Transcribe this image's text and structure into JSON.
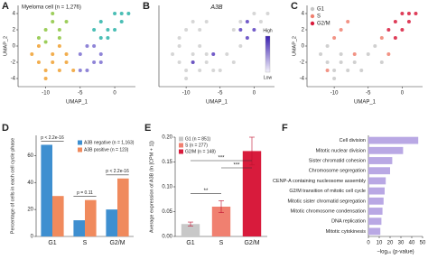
{
  "chart_data": [
    {
      "type": "scatter",
      "label": "A",
      "title": "Myeloma cell (n = 1,276)",
      "xlabel": "UMAP_1",
      "ylabel": "UMAP_2",
      "xlim": [
        -14,
        3
      ],
      "ylim": [
        -5,
        5
      ],
      "xticks": [
        -10,
        -5,
        0
      ],
      "yticks": [
        -4,
        -2,
        0,
        2,
        4
      ],
      "series": [
        {
          "color": "#f0a030",
          "x": [
            -12,
            -11,
            -10,
            -9,
            -8,
            -7,
            -11,
            -9,
            -7,
            -6,
            -10,
            -8
          ],
          "y": [
            -1,
            -2,
            -3,
            -2,
            -3,
            -2,
            0,
            -1,
            -1,
            -3,
            -4,
            0
          ]
        },
        {
          "color": "#8cc63f",
          "x": [
            -11,
            -10,
            -9,
            -8,
            -10,
            -8,
            -7,
            -9
          ],
          "y": [
            1,
            2,
            3,
            2,
            0.5,
            1,
            3,
            4
          ]
        },
        {
          "color": "#2bb3a8",
          "x": [
            -3,
            -2,
            -1,
            0,
            1,
            2,
            -1,
            0,
            1,
            -2
          ],
          "y": [
            2,
            3,
            2,
            4,
            3,
            4,
            1,
            2,
            4,
            1
          ]
        },
        {
          "color": "#7b6fd0",
          "x": [
            -5,
            -4,
            -3,
            -2,
            -4,
            -3,
            -5,
            -2
          ],
          "y": [
            -1,
            0,
            -2,
            -1,
            -3,
            0,
            -3,
            -2
          ]
        }
      ]
    },
    {
      "type": "scatter",
      "label": "B",
      "title": "A3B",
      "xlabel": "UMAP_1",
      "high": "High",
      "low": "Low",
      "xlim": [
        -14,
        3
      ],
      "ylim": [
        -5,
        5
      ],
      "xticks": [
        -10,
        -5,
        0
      ],
      "series": [
        {
          "color": "#cfcfcf",
          "x": [
            -12,
            -11,
            -10,
            -9,
            -8,
            -7,
            -11,
            -9,
            -7,
            -6,
            -10,
            -8,
            -11,
            -10,
            -9,
            -8,
            -7,
            -3,
            -2,
            0,
            1,
            2,
            -4,
            -3,
            -2,
            -5
          ],
          "y": [
            -1,
            -2,
            -3,
            -2,
            -3,
            -2,
            0,
            -1,
            -1,
            -3,
            -4,
            0,
            1,
            2,
            3,
            2,
            3,
            2,
            3,
            4,
            3,
            4,
            -1,
            -2,
            0,
            -3
          ]
        },
        {
          "color": "#5a3fc0",
          "x": [
            -1,
            -1,
            0,
            -2,
            -9,
            -6
          ],
          "y": [
            1,
            3,
            2,
            2,
            -2,
            -1
          ]
        }
      ]
    },
    {
      "type": "scatter",
      "label": "C",
      "xlabel": "UMAP_1",
      "ylabel": "UMAP_2",
      "xlim": [
        -14,
        3
      ],
      "ylim": [
        -5,
        5
      ],
      "xticks": [
        -10,
        -5,
        0
      ],
      "yticks": [
        -4,
        -2,
        0,
        2,
        4
      ],
      "legend": "top-left",
      "series": [
        {
          "name": "G1",
          "color": "#c8c8c8",
          "x": [
            -12,
            -11,
            -10,
            -9,
            -8,
            -7,
            -11,
            -9,
            -6,
            -10,
            -3,
            -4,
            -5
          ],
          "y": [
            -1,
            -2,
            -3,
            -2,
            -3,
            -2,
            0,
            -1,
            -3,
            -4,
            -2,
            0,
            -1
          ]
        },
        {
          "name": "S",
          "color": "#f08070",
          "x": [
            -10,
            -9,
            -8,
            -7,
            -11,
            -2,
            -3
          ],
          "y": [
            1,
            2,
            3,
            -1,
            -3,
            -1,
            1
          ]
        },
        {
          "name": "G2/M",
          "color": "#d81b3c",
          "x": [
            -2,
            -1,
            0,
            1,
            2,
            -1,
            0,
            1
          ],
          "y": [
            2,
            3,
            4,
            3,
            4,
            1,
            2,
            4
          ]
        }
      ]
    },
    {
      "type": "bar",
      "label": "D",
      "ylabel": "Percentage of cells in each cell cycle phase",
      "categories": [
        "G1",
        "S",
        "G2/M"
      ],
      "ylim": [
        0,
        75
      ],
      "yticks": [
        0,
        20,
        40,
        60
      ],
      "series": [
        {
          "name": "A3B negative (n = 1,163)",
          "color": "#3e8fd0",
          "values": [
            68,
            12,
            20
          ]
        },
        {
          "name": "A3B positive (n = 123)",
          "color": "#f08a5d",
          "values": [
            30,
            27,
            43
          ]
        }
      ],
      "annotations": [
        "p < 2.2e-16",
        "p = 0.11",
        "p < 2.2e-16"
      ]
    },
    {
      "type": "bar",
      "label": "E",
      "ylabel": "Average expression of A3B (ln [CPM + 1])",
      "categories": [
        "G1",
        "S",
        "G2/M"
      ],
      "values": [
        0.025,
        0.06,
        0.172
      ],
      "errors": [
        0.004,
        0.012,
        0.028
      ],
      "colors": [
        "#c8c8c8",
        "#f08070",
        "#d81b3c"
      ],
      "legend": [
        "G1 (n = 851)",
        "S (n = 277)",
        "G2/M (n = 148)"
      ],
      "ylim": [
        0,
        0.2
      ],
      "yticks": [
        {
          "value": 0,
          "label": "0.00"
        },
        {
          "value": 0.05,
          "label": "0.05"
        },
        {
          "value": 0.1,
          "label": "0.10"
        },
        {
          "value": 0.15,
          "label": "0.15"
        },
        {
          "value": 0.2,
          "label": "0.20"
        }
      ],
      "annotations": [
        "**",
        "***",
        "***"
      ]
    },
    {
      "type": "barh",
      "label": "F",
      "xlabel": "−log₁₀ (p-value)",
      "color": "#b9a8e4",
      "categories": [
        "Cell division",
        "Mitotic nuclear division",
        "Sister chromatid cohesion",
        "Chromosome segregation",
        "CENP-A containing nucleosome assembly",
        "G2/M transition of mitotic cell cycle",
        "Mitotic sister chromatid segregation",
        "Mitotic chromosome condensation",
        "DNA replication",
        "Mitotic cytokinesis"
      ],
      "values": [
        46,
        32,
        22,
        20,
        16,
        15,
        14,
        13,
        12,
        11
      ],
      "xlim": [
        0,
        50
      ],
      "xticks": [
        0,
        10,
        20,
        30,
        40,
        50
      ]
    }
  ]
}
